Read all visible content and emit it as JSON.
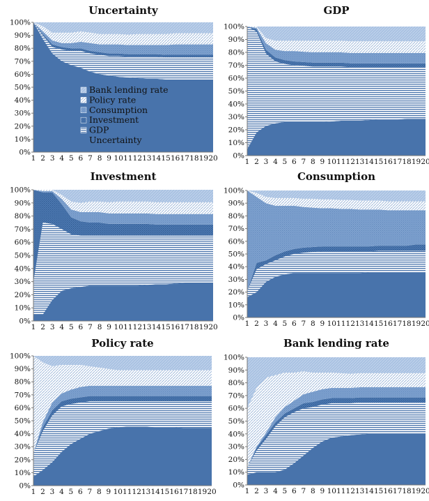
{
  "chart_data": [
    {
      "type": "area",
      "title": "Uncertainty",
      "x": [
        1,
        2,
        3,
        4,
        5,
        6,
        7,
        8,
        9,
        10,
        11,
        12,
        13,
        14,
        15,
        16,
        17,
        18,
        19,
        20
      ],
      "ylim": [
        0,
        100
      ],
      "yticks": [
        "0%",
        "10%",
        "20%",
        "30%",
        "40%",
        "50%",
        "60%",
        "70%",
        "80%",
        "90%",
        "100%"
      ],
      "legend_placement": "center",
      "stack_order": [
        "Uncertainty",
        "GDP",
        "Investment",
        "Consumption",
        "Policy rate",
        "Bank lending rate"
      ],
      "series": [
        {
          "name": "Uncertainty",
          "values": [
            100,
            87,
            76,
            70,
            67,
            65,
            62,
            60,
            59,
            58,
            57.5,
            57,
            56.5,
            56.5,
            56,
            56,
            56,
            56,
            56,
            56
          ]
        },
        {
          "name": "GDP",
          "values": [
            0,
            3,
            5,
            9,
            11,
            13,
            14,
            15,
            15,
            16,
            16,
            16.5,
            17,
            17,
            17,
            17,
            17,
            17,
            17,
            17
          ]
        },
        {
          "name": "Investment",
          "values": [
            0,
            1,
            2,
            2,
            2,
            2,
            2,
            2,
            2,
            2,
            2,
            2,
            2,
            2,
            2,
            2,
            2,
            2,
            2,
            2
          ]
        },
        {
          "name": "Consumption",
          "values": [
            0,
            2,
            3,
            3,
            4,
            5,
            6,
            6,
            7,
            7,
            7,
            7,
            7,
            7,
            7.5,
            8,
            8,
            8,
            8,
            8
          ]
        },
        {
          "name": "Policy rate",
          "values": [
            0,
            4,
            6,
            8,
            8,
            8,
            8,
            8,
            8,
            8,
            8,
            8.5,
            8.5,
            8.5,
            8.5,
            8.5,
            8.5,
            8.5,
            8.5,
            8.5
          ]
        },
        {
          "name": "Bank lending rate",
          "values": [
            0,
            3,
            8,
            8,
            8,
            7,
            8,
            9,
            9,
            9,
            9.5,
            9,
            9,
            9,
            9,
            8.5,
            8.5,
            8.5,
            8.5,
            8.5
          ]
        }
      ]
    },
    {
      "type": "area",
      "title": "GDP",
      "x": [
        1,
        2,
        3,
        4,
        5,
        6,
        7,
        8,
        9,
        10,
        11,
        12,
        13,
        14,
        15,
        16,
        17,
        18,
        19,
        20
      ],
      "ylim": [
        0,
        100
      ],
      "yticks": [
        "0%",
        "10%",
        "20%",
        "30%",
        "40%",
        "50%",
        "60%",
        "70%",
        "80%",
        "90%",
        "100%"
      ],
      "stack_order": [
        "Uncertainty",
        "GDP",
        "Investment",
        "Consumption",
        "Policy rate",
        "Bank lending rate"
      ],
      "series": [
        {
          "name": "Uncertainty",
          "values": [
            5,
            18,
            23,
            25,
            26,
            26,
            26,
            26,
            26,
            26.5,
            27,
            27,
            27,
            27.5,
            28,
            28,
            28,
            28.5,
            28.5,
            28.5
          ]
        },
        {
          "name": "GDP",
          "values": [
            95,
            78,
            56,
            48,
            45,
            44,
            43.5,
            43,
            43,
            42.5,
            42,
            41.5,
            41.5,
            41,
            40.5,
            40.5,
            40.5,
            40,
            40,
            40
          ]
        },
        {
          "name": "Investment",
          "values": [
            0,
            2,
            3,
            3,
            3,
            3,
            3,
            3,
            3,
            3,
            3,
            3,
            3,
            3,
            3,
            3,
            3,
            3,
            3,
            3
          ]
        },
        {
          "name": "Consumption",
          "values": [
            0,
            1,
            5,
            6,
            7,
            8,
            8,
            8,
            8,
            8,
            8,
            8,
            8,
            8,
            8,
            8,
            8,
            8,
            8,
            8
          ]
        },
        {
          "name": "Policy rate",
          "values": [
            0,
            1,
            4,
            7,
            8,
            8,
            8.5,
            9,
            9,
            9,
            9,
            9,
            9,
            9,
            9,
            9,
            9,
            9,
            9,
            9
          ]
        },
        {
          "name": "Bank lending rate",
          "values": [
            0,
            0,
            9,
            11,
            11,
            11,
            11,
            11,
            11,
            11,
            11,
            11.5,
            11.5,
            11.5,
            11.5,
            11.5,
            11.5,
            11.5,
            11.5,
            11.5
          ]
        }
      ]
    },
    {
      "type": "area",
      "title": "Investment",
      "x": [
        1,
        2,
        3,
        4,
        5,
        6,
        7,
        8,
        9,
        10,
        11,
        12,
        13,
        14,
        15,
        16,
        17,
        18,
        19,
        20
      ],
      "ylim": [
        0,
        100
      ],
      "yticks": [
        "0%",
        "10%",
        "20%",
        "30%",
        "40%",
        "50%",
        "60%",
        "70%",
        "80%",
        "90%",
        "100%"
      ],
      "stack_order": [
        "Uncertainty",
        "GDP",
        "Investment",
        "Consumption",
        "Policy rate",
        "Bank lending rate"
      ],
      "series": [
        {
          "name": "Uncertainty",
          "values": [
            5,
            5,
            16,
            23,
            25,
            26,
            27,
            27,
            27,
            27,
            27,
            27,
            27.5,
            28,
            28,
            28.5,
            29,
            29,
            29,
            29
          ]
        },
        {
          "name": "GDP",
          "values": [
            25,
            70,
            58,
            47,
            41,
            39,
            38,
            38,
            38,
            38,
            38,
            38,
            37.5,
            37,
            37,
            36.5,
            36,
            36,
            36,
            36
          ]
        },
        {
          "name": "Investment",
          "values": [
            70,
            23,
            24,
            19,
            13,
            11,
            10,
            10,
            9,
            9,
            9,
            9,
            9,
            8.5,
            8.5,
            8.5,
            8.5,
            8.5,
            8.5,
            8.5
          ]
        },
        {
          "name": "Consumption",
          "values": [
            0,
            1,
            1,
            4,
            6,
            7,
            8,
            8,
            8,
            8,
            8,
            8,
            8,
            8,
            8,
            8,
            8,
            8,
            8,
            8
          ]
        },
        {
          "name": "Policy rate",
          "values": [
            0,
            1,
            1,
            3,
            6,
            7,
            8,
            8,
            8.5,
            9,
            9,
            9,
            9,
            9,
            9,
            9,
            9,
            9,
            9,
            9
          ]
        },
        {
          "name": "Bank lending rate",
          "values": [
            0,
            0,
            0,
            4,
            9,
            10,
            9,
            9,
            9.5,
            9,
            9,
            9,
            9,
            9.5,
            9.5,
            10,
            10.5,
            10.5,
            10.5,
            10.5
          ]
        }
      ]
    },
    {
      "type": "area",
      "title": "Consumption",
      "x": [
        1,
        2,
        3,
        4,
        5,
        6,
        7,
        8,
        9,
        10,
        11,
        12,
        13,
        14,
        15,
        16,
        17,
        18,
        19,
        20
      ],
      "ylim": [
        0,
        100
      ],
      "yticks": [
        "0%",
        "10%",
        "20%",
        "30%",
        "40%",
        "50%",
        "60%",
        "70%",
        "80%",
        "90%",
        "100%"
      ],
      "stack_order": [
        "Uncertainty",
        "GDP",
        "Investment",
        "Consumption",
        "Policy rate",
        "Bank lending rate"
      ],
      "series": [
        {
          "name": "Uncertainty",
          "values": [
            16,
            20,
            28,
            32,
            34,
            35,
            35,
            35,
            35,
            35,
            35,
            35,
            35,
            35.5,
            35.5,
            35.5,
            35.5,
            35.5,
            35.5,
            35.5
          ]
        },
        {
          "name": "GDP",
          "values": [
            5,
            18,
            14,
            13,
            14,
            15,
            16,
            16.5,
            17,
            17,
            17,
            17,
            17,
            16.5,
            17,
            17,
            17,
            17,
            17,
            17
          ]
        },
        {
          "name": "Investment",
          "values": [
            0,
            5,
            3,
            4,
            4,
            4,
            4,
            4,
            4,
            4,
            4,
            4,
            4,
            4,
            4,
            4,
            4,
            4,
            5,
            5
          ]
        },
        {
          "name": "Consumption",
          "values": [
            79,
            52,
            45,
            39,
            36,
            34,
            32,
            31,
            30,
            30,
            29.5,
            29.5,
            29,
            29,
            28.5,
            28,
            28,
            28,
            27,
            27
          ]
        },
        {
          "name": "Policy rate",
          "values": [
            0,
            3,
            5,
            6,
            6,
            6,
            6.5,
            7,
            7,
            7,
            7,
            7,
            7,
            7,
            7,
            7,
            7,
            7,
            7,
            7
          ]
        },
        {
          "name": "Bank lending rate",
          "values": [
            0,
            2,
            5,
            6,
            6,
            6,
            6.5,
            6.5,
            7,
            7,
            7.5,
            7.5,
            8,
            8,
            8,
            8.5,
            8.5,
            8.5,
            8.5,
            8.5
          ]
        }
      ]
    },
    {
      "type": "area",
      "title": "Policy rate",
      "x": [
        1,
        2,
        3,
        4,
        5,
        6,
        7,
        8,
        9,
        10,
        11,
        12,
        13,
        14,
        15,
        16,
        17,
        18,
        19,
        20
      ],
      "ylim": [
        0,
        100
      ],
      "yticks": [
        "0%",
        "10%",
        "20%",
        "30%",
        "40%",
        "50%",
        "60%",
        "70%",
        "80%",
        "90%",
        "100%"
      ],
      "stack_order": [
        "Uncertainty",
        "GDP",
        "Investment",
        "Consumption",
        "Policy rate",
        "Bank lending rate"
      ],
      "series": [
        {
          "name": "Uncertainty",
          "values": [
            7,
            12,
            18,
            26,
            32,
            36,
            40,
            42,
            44,
            45,
            45.5,
            45.5,
            45.5,
            45,
            45,
            45,
            44.5,
            44.5,
            44.5,
            44.5
          ]
        },
        {
          "name": "GDP",
          "values": [
            18,
            30,
            36,
            35,
            31,
            28,
            25,
            23,
            21,
            20,
            19.5,
            19.5,
            19.5,
            20,
            20,
            20,
            20.5,
            20.5,
            20.5,
            20.5
          ]
        },
        {
          "name": "Investment",
          "values": [
            0,
            3,
            4,
            4,
            4,
            4,
            4,
            4,
            4,
            4,
            4,
            4,
            4,
            4,
            4,
            4,
            4,
            4,
            4,
            4
          ]
        },
        {
          "name": "Consumption",
          "values": [
            0,
            4,
            6,
            6,
            7,
            8,
            8,
            8,
            8,
            8,
            8,
            8,
            8,
            8,
            8,
            8,
            8,
            8,
            8,
            8
          ]
        },
        {
          "name": "Policy rate",
          "values": [
            75,
            46,
            28,
            22,
            19,
            17,
            15,
            14,
            13,
            12,
            12,
            12,
            12,
            12,
            12,
            12,
            12,
            12,
            12,
            12
          ]
        },
        {
          "name": "Bank lending rate",
          "values": [
            0,
            5,
            8,
            7,
            7,
            7,
            8,
            9,
            10,
            11,
            11,
            11,
            11,
            11,
            11,
            11,
            11,
            11,
            11,
            11
          ]
        }
      ]
    },
    {
      "type": "area",
      "title": "Bank lending rate",
      "x": [
        1,
        2,
        3,
        4,
        5,
        6,
        7,
        8,
        9,
        10,
        11,
        12,
        13,
        14,
        15,
        16,
        17,
        18,
        19,
        20
      ],
      "ylim": [
        0,
        100
      ],
      "yticks": [
        "0%",
        "10%",
        "20%",
        "30%",
        "40%",
        "50%",
        "60%",
        "70%",
        "80%",
        "90%",
        "100%"
      ],
      "stack_order": [
        "Uncertainty",
        "GDP",
        "Investment",
        "Consumption",
        "Policy rate",
        "Bank lending rate"
      ],
      "series": [
        {
          "name": "Uncertainty",
          "values": [
            8,
            10,
            10,
            10,
            12,
            17,
            23,
            29,
            34,
            37,
            38,
            39,
            39.5,
            40,
            40,
            40,
            40,
            40,
            40,
            40
          ]
        },
        {
          "name": "GDP",
          "values": [
            6,
            17,
            26,
            36,
            41,
            40,
            37,
            32,
            29,
            27,
            26,
            25,
            25,
            24.5,
            24.5,
            24.5,
            24.5,
            24.5,
            24.5,
            24.5
          ]
        },
        {
          "name": "Investment",
          "values": [
            0,
            2,
            3,
            3,
            3,
            3,
            4,
            4,
            4,
            4,
            4,
            4,
            4,
            4,
            4,
            4,
            4,
            4,
            4,
            4
          ]
        },
        {
          "name": "Consumption",
          "values": [
            0,
            1,
            2,
            4,
            5,
            6,
            7,
            8,
            8,
            8,
            8,
            8,
            8,
            8,
            8,
            8,
            8,
            8,
            8,
            8
          ]
        },
        {
          "name": "Policy rate",
          "values": [
            46,
            46,
            43,
            33,
            27,
            22,
            18,
            15,
            13,
            12,
            11.5,
            11,
            11,
            11,
            11,
            11,
            11,
            11,
            11,
            11
          ]
        },
        {
          "name": "Bank lending rate",
          "values": [
            40,
            24,
            16,
            14,
            12,
            12,
            11,
            12,
            12,
            12,
            12.5,
            13,
            12.5,
            12.5,
            12.5,
            12.5,
            12.5,
            12.5,
            12.5,
            12.5
          ]
        }
      ]
    }
  ],
  "legend": {
    "entries": [
      "Bank lending rate",
      "Policy rate",
      "Consumption",
      "Investment",
      "GDP",
      "Uncertainty"
    ]
  },
  "colors": {
    "Uncertainty": "#4873ab",
    "GDP": "#4873ab",
    "Investment": "#4873ab",
    "Consumption": "#7fa2cf",
    "Policy rate": "#a6c0e0",
    "Bank lending rate": "#a6c0e0"
  }
}
